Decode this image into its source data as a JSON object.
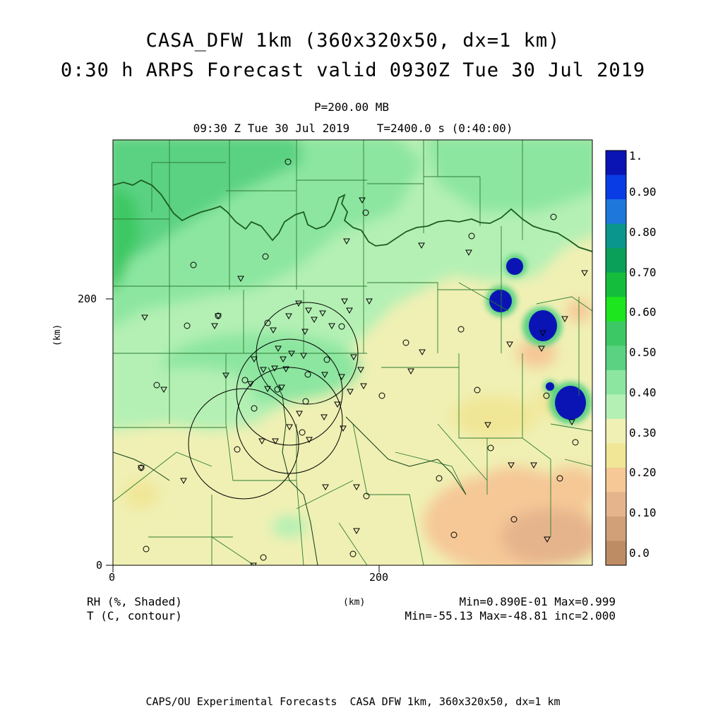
{
  "title_line1": "CASA_DFW 1km (360x320x50, dx=1 km)",
  "title_line2": "0:30 h ARPS Forecast valid 0930Z Tue 30 Jul 2019",
  "level_label": "P=200.00 MB",
  "time_label": "09:30 Z Tue 30 Jul 2019    T=2400.0 s (0:40:00)",
  "axes": {
    "y_unit": "(km)",
    "x_unit": "(km)",
    "y_ticks": [
      "200",
      "0"
    ],
    "x_ticks": [
      "0",
      "200"
    ]
  },
  "legend": {
    "top_label": "1.",
    "labels": [
      "0.90",
      "0.80",
      "0.70",
      "0.60",
      "0.50",
      "0.40",
      "0.30",
      "0.20",
      "0.10",
      "0.0"
    ],
    "colors": [
      "#0a14b4",
      "#0a3ce6",
      "#1e78dc",
      "#0a968c",
      "#0aa05a",
      "#14be3c",
      "#1ee61e",
      "#3cc864",
      "#5ad282",
      "#8ce6a0",
      "#b4f0b4",
      "#f0f0b4",
      "#f0e696",
      "#f5c896",
      "#e6b48c",
      "#d2a078",
      "#be8c64"
    ]
  },
  "caption": {
    "field1": "RH (%, Shaded)",
    "field2": "T (C, contour)",
    "minmax1": "Min=0.890E-01 Max=0.999",
    "minmax2": "Min=-55.13 Max=-48.81 inc=2.000"
  },
  "footer": "CAPS/OU Experimental Forecasts  CASA DFW 1km, 360x320x50, dx=1 km"
}
